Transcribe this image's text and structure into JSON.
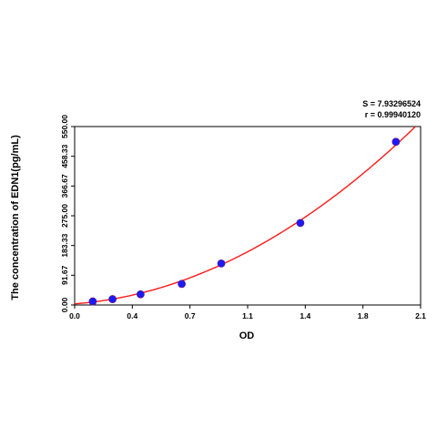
{
  "chart_data": {
    "type": "scatter",
    "xlabel": "OD",
    "ylabel": "The concentration of EDN1(pg/mL)",
    "xlim": [
      0.0,
      2.1
    ],
    "ylim": [
      0.0,
      550.0
    ],
    "x_ticks": [
      "0.0",
      "0.4",
      "0.7",
      "1.1",
      "1.4",
      "1.8",
      "2.1"
    ],
    "x_tick_values": [
      0.0,
      0.35,
      0.7,
      1.05,
      1.4,
      1.75,
      2.1
    ],
    "y_ticks": [
      "0.00",
      "91.67",
      "183.33",
      "275.00",
      "366.67",
      "458.33",
      "550.00"
    ],
    "y_tick_values": [
      0.0,
      91.67,
      183.33,
      275.0,
      366.67,
      458.33,
      550.0
    ],
    "grid": false,
    "stats": {
      "s_label": "S = 7.93296524",
      "r_label": "r = 0.99940120"
    },
    "series": [
      {
        "type": "scatter",
        "points": [
          {
            "x": 0.11,
            "y": 11
          },
          {
            "x": 0.23,
            "y": 18
          },
          {
            "x": 0.4,
            "y": 33
          },
          {
            "x": 0.65,
            "y": 65
          },
          {
            "x": 0.89,
            "y": 128
          },
          {
            "x": 1.37,
            "y": 253
          },
          {
            "x": 1.95,
            "y": 503
          }
        ]
      },
      {
        "type": "line",
        "fit_coefficients": [
          3.6,
          38.2,
          109.2
        ],
        "x_range": [
          0.0,
          2.08
        ]
      }
    ],
    "colors": {
      "points": "#1a1aff",
      "point_edge": "#5a1a8a",
      "curve": "#ff1a1a",
      "axes": "#000000"
    }
  }
}
